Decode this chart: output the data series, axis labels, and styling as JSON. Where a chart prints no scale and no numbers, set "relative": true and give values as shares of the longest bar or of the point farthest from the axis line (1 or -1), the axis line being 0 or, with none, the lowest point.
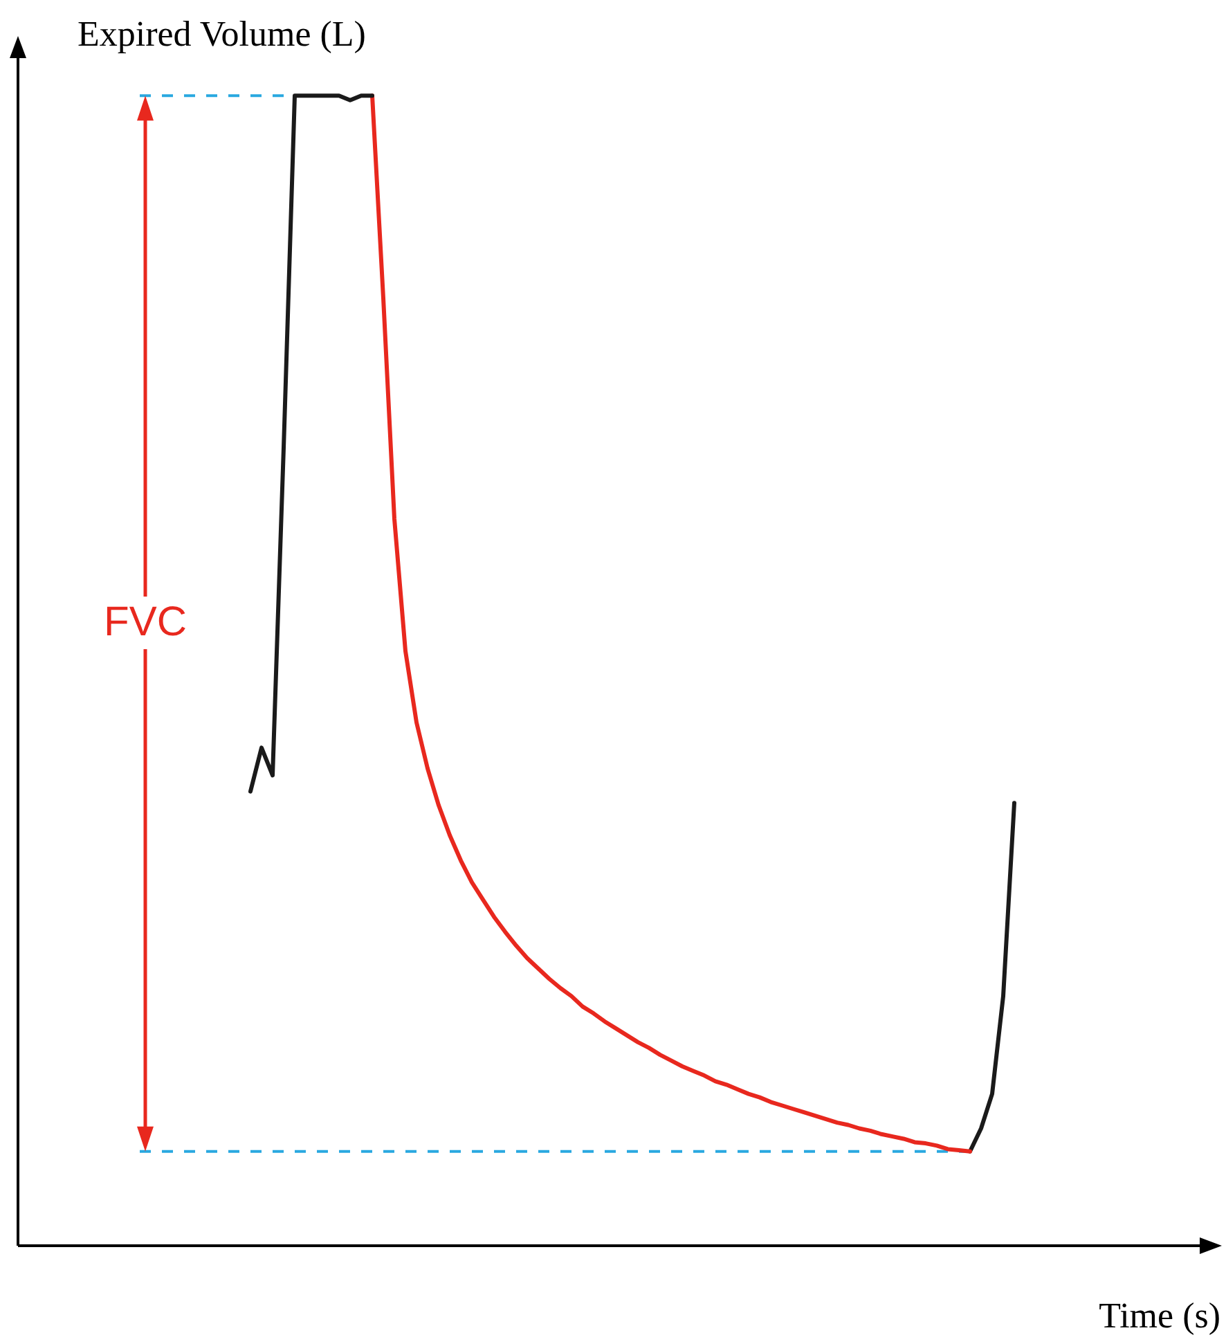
{
  "chart_data": {
    "type": "line",
    "xlabel": "Time (s)",
    "ylabel": "Expired Volume (L)",
    "relative": true,
    "grid": false,
    "tick_labels": false,
    "marker": "none",
    "line_style": "solid",
    "categories": [
      null,
      null,
      null,
      null,
      null,
      null,
      null,
      null,
      null,
      null,
      null,
      null,
      null,
      null,
      null,
      null,
      null,
      null,
      null,
      null,
      null,
      null,
      null,
      null,
      null,
      null,
      null,
      null,
      null,
      null,
      null,
      null,
      null,
      null,
      null,
      null,
      null,
      null,
      null,
      null,
      null,
      null,
      null,
      null,
      null,
      null,
      null,
      null,
      null,
      null,
      null,
      null,
      null,
      null,
      null,
      null,
      null,
      null,
      null,
      null,
      null,
      null,
      null,
      null,
      null,
      null,
      null,
      null,
      null,
      null,
      null,
      null,
      null,
      null,
      null,
      null,
      null,
      null,
      null,
      null,
      null,
      null,
      null,
      null,
      null,
      null,
      null,
      null,
      null,
      null,
      null,
      null,
      null,
      null,
      null,
      null,
      null,
      null,
      null,
      null,
      null,
      null,
      null,
      null,
      null,
      null,
      null,
      null
    ],
    "series": [
      {
        "color": "#1a1a1a",
        "values": [
          null,
          null,
          null,
          null,
          null,
          null,
          null,
          null,
          null,
          null,
          null,
          null,
          null,
          null,
          null,
          null,
          null,
          null,
          null,
          null,
          null,
          0.395,
          0.433,
          0.409,
          0.694,
          1,
          1,
          1,
          1,
          1,
          0.996,
          1,
          1,
          null,
          null,
          null,
          null,
          null,
          null,
          null,
          null,
          null,
          null,
          null,
          null,
          null,
          null,
          null,
          null,
          null,
          null,
          null,
          null,
          null,
          null,
          null,
          null,
          null,
          null,
          null,
          null,
          null,
          null,
          null,
          null,
          null,
          null,
          null,
          null,
          null,
          null,
          null,
          null,
          null,
          null,
          null,
          null,
          null,
          null,
          null,
          null,
          null,
          null,
          null,
          null,
          null,
          null,
          null,
          null,
          null,
          null,
          null,
          null,
          null,
          null,
          null,
          null,
          null,
          null,
          null,
          null,
          null,
          null,
          null,
          null,
          null,
          null,
          null
        ]
      },
      {
        "color": "#e8281e",
        "values": [
          null,
          null,
          null,
          null,
          null,
          null,
          null,
          null,
          null,
          null,
          null,
          null,
          null,
          null,
          null,
          null,
          null,
          null,
          null,
          null,
          null,
          null,
          null,
          null,
          null,
          null,
          null,
          null,
          null,
          null,
          null,
          null,
          1,
          0.824,
          0.632,
          0.517,
          0.455,
          0.415,
          0.383,
          0.357,
          0.335,
          0.316,
          0.301,
          0.286,
          0.273,
          0.261,
          0.25,
          0.241,
          0.232,
          0.224,
          0.217,
          0.208,
          0.202,
          0.195,
          0.189,
          0.183,
          0.177,
          0.172,
          0.166,
          0.161,
          0.156,
          0.152,
          0.148,
          0.143,
          0.14,
          0.136,
          0.132,
          0.129,
          0.125,
          0.122,
          0.119,
          0.116,
          0.113,
          0.11,
          0.107,
          0.105,
          0.102,
          0.1,
          0.097,
          0.095,
          0.093,
          0.09,
          0.089,
          0.087,
          0.084,
          0.083,
          0.082,
          null,
          null,
          null,
          null,
          null,
          null,
          null,
          null,
          null,
          null,
          null,
          null,
          null,
          null,
          null,
          null,
          null,
          null,
          null,
          null,
          null
        ]
      },
      {
        "color": "#1a1a1a",
        "values": [
          null,
          null,
          null,
          null,
          null,
          null,
          null,
          null,
          null,
          null,
          null,
          null,
          null,
          null,
          null,
          null,
          null,
          null,
          null,
          null,
          null,
          null,
          null,
          null,
          null,
          null,
          null,
          null,
          null,
          null,
          null,
          null,
          null,
          null,
          null,
          null,
          null,
          null,
          null,
          null,
          null,
          null,
          null,
          null,
          null,
          null,
          null,
          null,
          null,
          null,
          null,
          null,
          null,
          null,
          null,
          null,
          null,
          null,
          null,
          null,
          null,
          null,
          null,
          null,
          null,
          null,
          null,
          null,
          null,
          null,
          null,
          null,
          null,
          null,
          null,
          null,
          null,
          null,
          null,
          null,
          null,
          null,
          null,
          null,
          null,
          null,
          0.082,
          0.102,
          0.132,
          0.217,
          0.385,
          null,
          null,
          null,
          null,
          null,
          null,
          null,
          null,
          null,
          null,
          null,
          null,
          null,
          null,
          null,
          null,
          null
        ]
      }
    ],
    "ref_lines": [
      {
        "axis": "y",
        "value": 1,
        "color": "#29a8e0",
        "line_style": "dashed"
      },
      {
        "axis": "y",
        "value": 0.082,
        "color": "#29a8e0",
        "line_style": "dashed"
      }
    ],
    "annotations": [
      "FVC"
    ]
  }
}
